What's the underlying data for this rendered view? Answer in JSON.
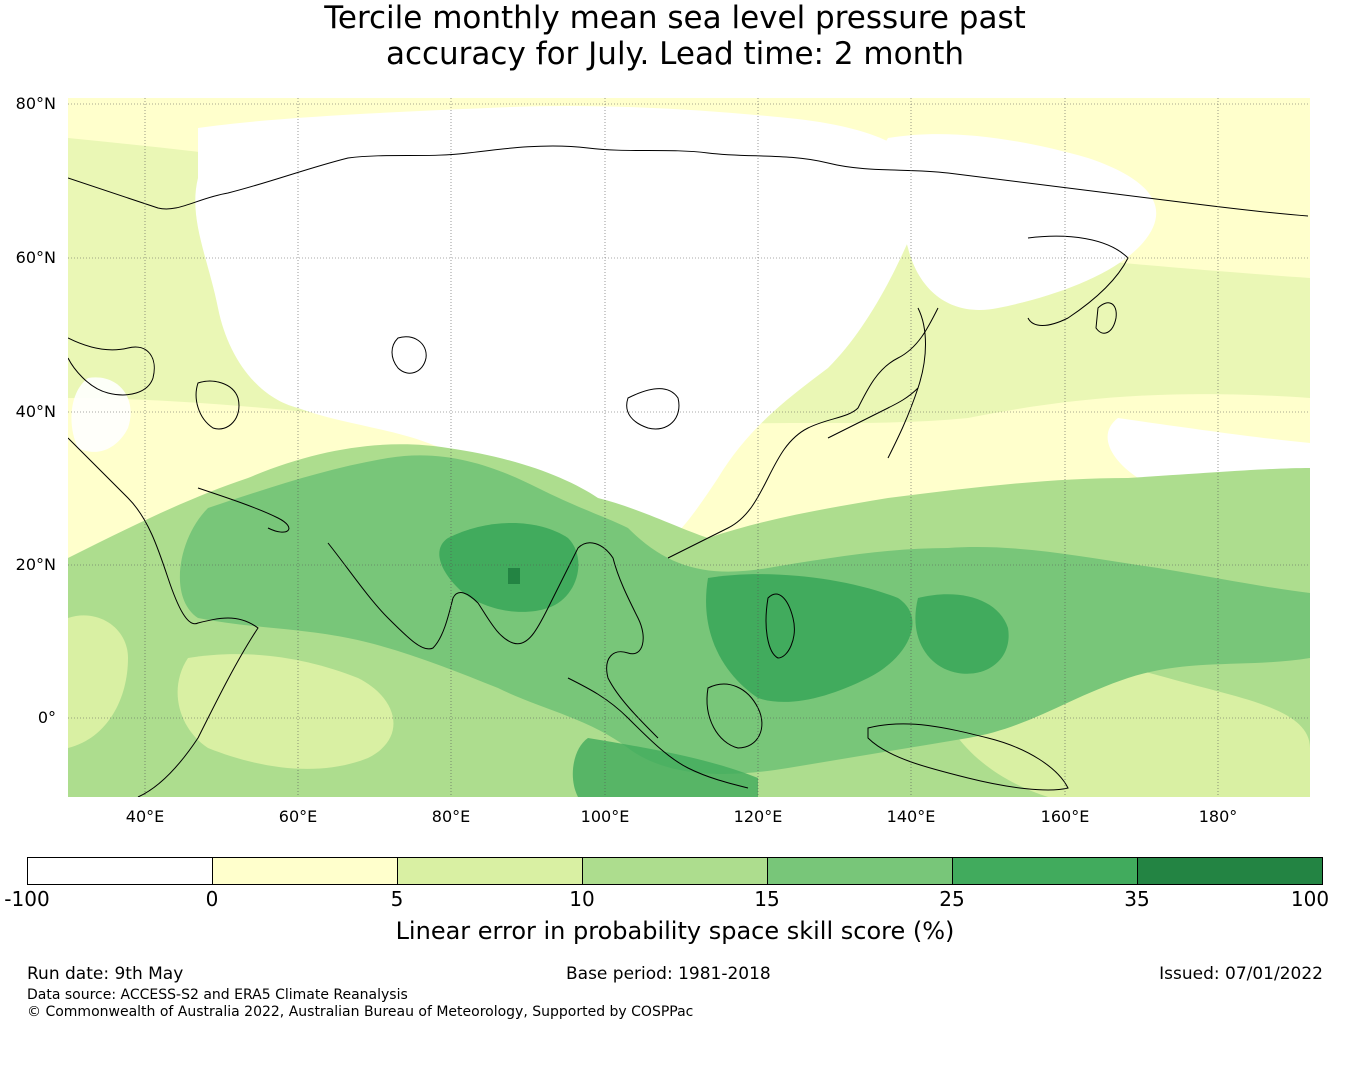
{
  "title_line1": "Tercile monthly mean sea level pressure past",
  "title_line2": "accuracy for July. Lead time: 2 month",
  "map": {
    "extent": {
      "lon_min": 30,
      "lon_max": 192,
      "lat_min": -10.5,
      "lat_max": 80.8
    },
    "lat_labels": [
      {
        "lat": 80,
        "text": "80°N"
      },
      {
        "lat": 60,
        "text": "60°N"
      },
      {
        "lat": 40,
        "text": "40°N"
      },
      {
        "lat": 20,
        "text": "20°N"
      },
      {
        "lat": 0,
        "text": "0°"
      }
    ],
    "lon_labels": [
      {
        "lon": 40,
        "text": "40°E"
      },
      {
        "lon": 60,
        "text": "60°E"
      },
      {
        "lon": 80,
        "text": "80°E"
      },
      {
        "lon": 100,
        "text": "100°E"
      },
      {
        "lon": 120,
        "text": "120°E"
      },
      {
        "lon": 140,
        "text": "140°E"
      },
      {
        "lon": 160,
        "text": "160°E"
      },
      {
        "lon": 180,
        "text": "180°"
      }
    ]
  },
  "colorbar": {
    "colors": [
      "#ffffff",
      "#ffffcc",
      "#d9f0a3",
      "#addd8e",
      "#78c679",
      "#41ab5d",
      "#238443"
    ],
    "ticks": [
      "-100",
      "0",
      "5",
      "10",
      "15",
      "25",
      "35",
      "100"
    ],
    "label": "Linear error in probability space skill score (%)"
  },
  "footer": {
    "run_date": "Run date: 9th May",
    "base_period": "Base period: 1981-2018",
    "issued": "Issued: 07/01/2022",
    "data_source": "Data source: ACCESS-S2 and ERA5 Climate Reanalysis",
    "copyright": "© Commonwealth of Australia 2022, Australian Bureau of Meteorology, Supported by COSPPac"
  }
}
